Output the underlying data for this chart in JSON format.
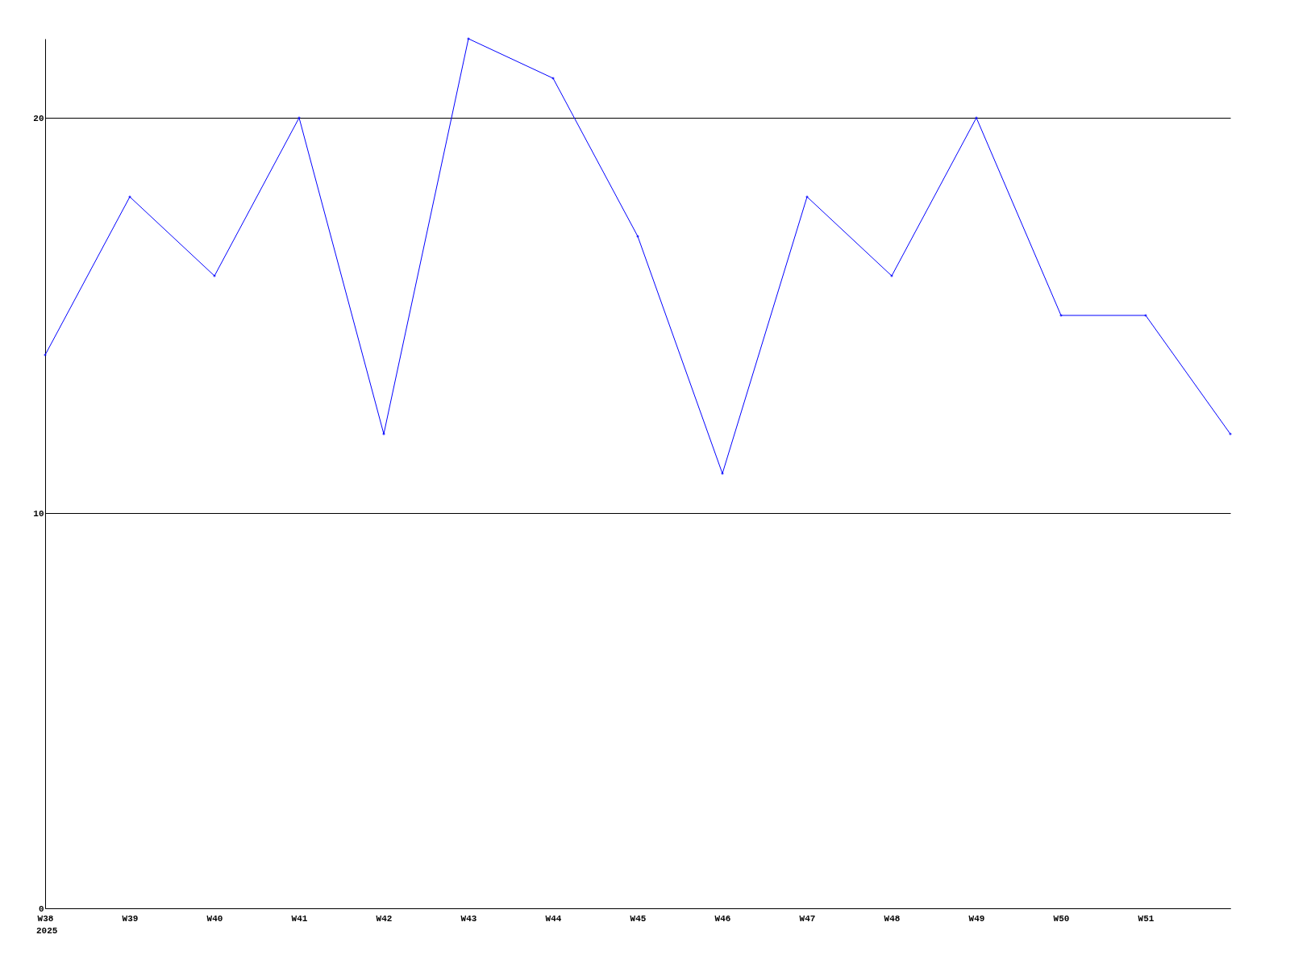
{
  "chart_data": {
    "type": "line",
    "categories": [
      "W38",
      "W39",
      "W40",
      "W41",
      "W42",
      "W43",
      "W44",
      "W45",
      "W46",
      "W47",
      "W48",
      "W49",
      "W50",
      "W51",
      null
    ],
    "series": [
      {
        "color": "#0000ff",
        "values": [
          14,
          18,
          16,
          20,
          12,
          22,
          21,
          17,
          11,
          18,
          16,
          20,
          15,
          15,
          12
        ]
      }
    ],
    "ylim": [
      0,
      22
    ],
    "yticks": [
      0,
      10,
      20
    ],
    "grid": "y",
    "marker": "diamond",
    "line_style": "solid",
    "legend": false,
    "annotations": [
      "2025"
    ]
  }
}
